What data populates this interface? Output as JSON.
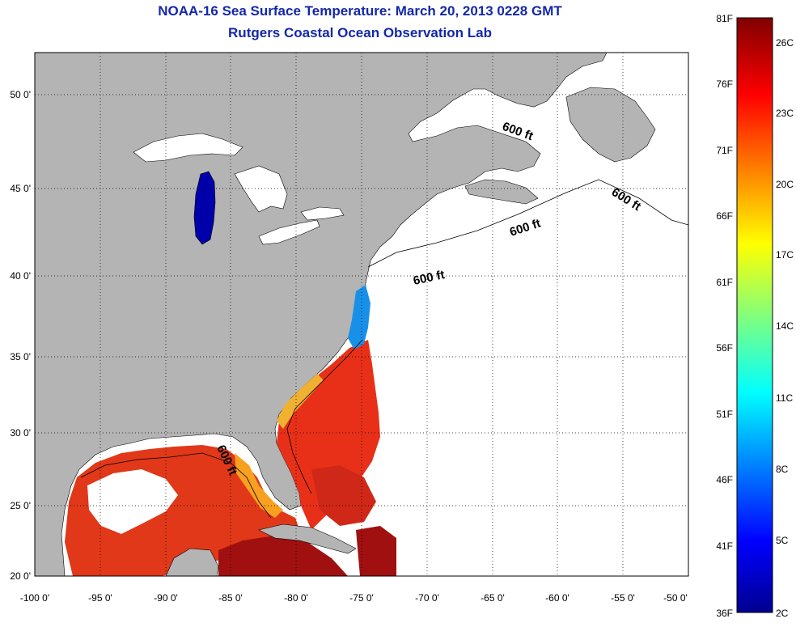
{
  "title": "NOAA-16 Sea Surface Temperature:  March 20, 2013 0228 GMT",
  "subtitle": "Rutgers Coastal Ocean Observation Lab",
  "axes": {
    "lon_labels": [
      "-100 0'",
      "-95 0'",
      "-90 0'",
      "-85 0'",
      "-80 0'",
      "-75 0'",
      "-70 0'",
      "-65 0'",
      "-60 0'",
      "-55 0'",
      "-50 0'"
    ],
    "lat_labels": [
      "50 0'",
      "45 0'",
      "40 0'",
      "35 0'",
      "30 0'",
      "25 0'",
      "20 0'"
    ],
    "lon_range": [
      -100,
      -50
    ],
    "lat_range": [
      20,
      52.5
    ]
  },
  "isobath_labels": [
    "600 ft",
    "600 ft",
    "600 ft",
    "600 ft",
    "600 ft"
  ],
  "colorbar": {
    "f_labels": [
      "81F",
      "76F",
      "71F",
      "66F",
      "61F",
      "56F",
      "51F",
      "46F",
      "41F",
      "36F"
    ],
    "c_labels": [
      "26C",
      "23C",
      "20C",
      "17C",
      "14C",
      "11C",
      "8C",
      "5C",
      "2C"
    ],
    "colors": [
      "#00008f",
      "#0000ff",
      "#00ffff",
      "#ffff00",
      "#ff0000",
      "#800000"
    ]
  },
  "colors": {
    "land": "#b4b4b4",
    "no_data": "#ffffff",
    "title": "#1428a8"
  }
}
